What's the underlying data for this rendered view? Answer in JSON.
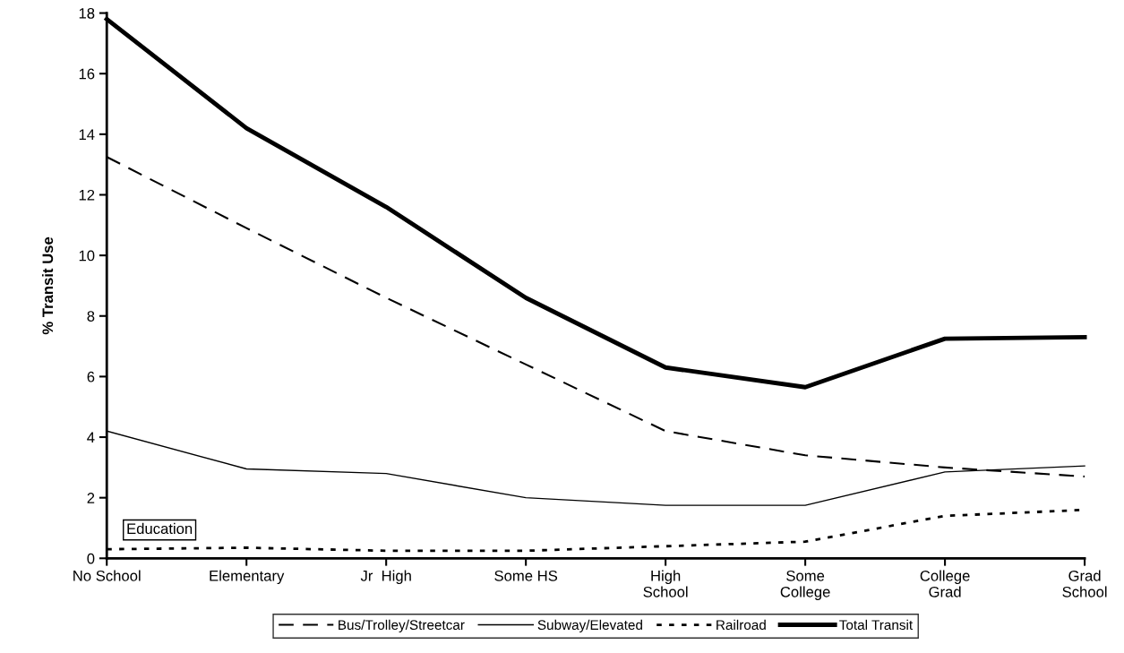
{
  "chart_data": {
    "type": "line",
    "categories": [
      "No School",
      "Elementary",
      "Jr  High",
      "Some HS",
      "High\nSchool",
      "Some\nCollege",
      "College\nGrad",
      "Grad\nSchool"
    ],
    "ylabel": "% Transit Use",
    "xlabel": "Education",
    "ylim": [
      0,
      18
    ],
    "yticks": [
      0,
      2,
      4,
      6,
      8,
      10,
      12,
      14,
      16,
      18
    ],
    "grid": false,
    "legend": "bottom",
    "marker": "none",
    "series": [
      {
        "name": "Bus/Trolley/Streetcar",
        "color": "#000000",
        "line_style": "dashed",
        "values": [
          13.25,
          10.9,
          8.6,
          6.4,
          4.2,
          3.4,
          3.0,
          2.7
        ]
      },
      {
        "name": "Subway/Elevated",
        "color": "#000000",
        "line_style": "solid",
        "values": [
          4.2,
          2.95,
          2.8,
          2.0,
          1.75,
          1.75,
          2.85,
          3.05
        ]
      },
      {
        "name": "Railroad",
        "color": "#000000",
        "line_style": "dotted",
        "values": [
          0.3,
          0.35,
          0.25,
          0.25,
          0.4,
          0.55,
          1.4,
          1.6
        ]
      },
      {
        "name": "Total Transit",
        "color": "#000000",
        "line_style": "solid",
        "values": [
          17.8,
          14.2,
          11.6,
          8.6,
          6.3,
          5.65,
          7.25,
          7.3
        ]
      }
    ]
  }
}
